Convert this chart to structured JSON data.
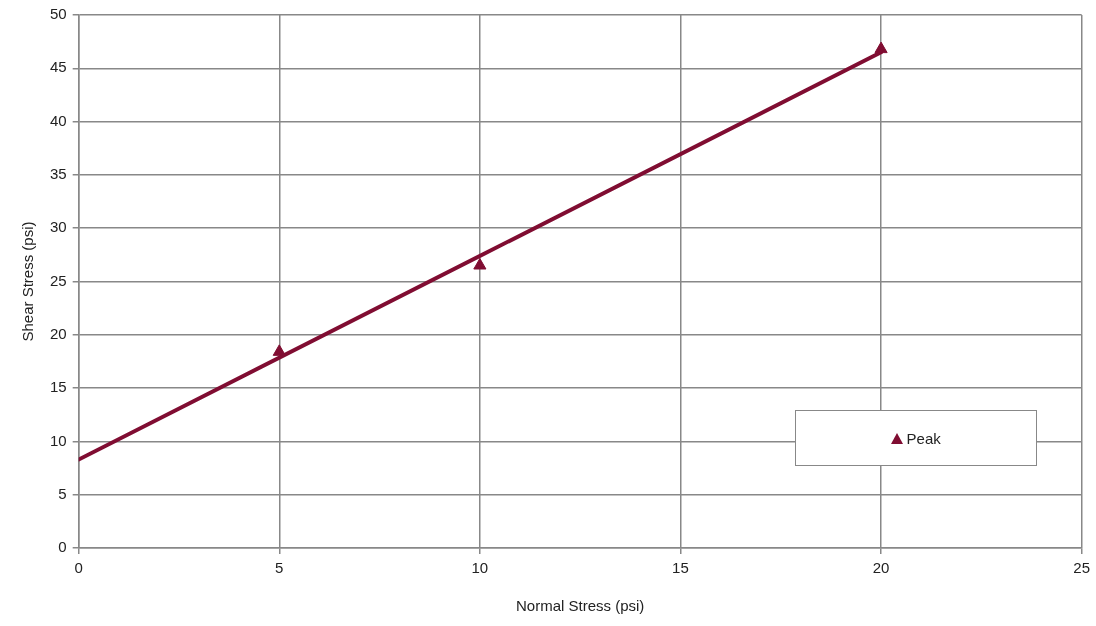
{
  "chart_data": {
    "type": "scatter",
    "xlabel": "Normal Stress (psi)",
    "ylabel": "Shear Stress (psi)",
    "xlim": [
      0,
      25
    ],
    "xticks": [
      0,
      5,
      10,
      15,
      20,
      25
    ],
    "ylim": [
      0,
      50
    ],
    "yticks": [
      0,
      5,
      10,
      15,
      20,
      25,
      30,
      35,
      40,
      45,
      50
    ],
    "grid": true,
    "legend": "bottom right",
    "series": [
      {
        "name": "Peak",
        "color": "#800d32",
        "marker": "triangle",
        "x": [
          5,
          10,
          20
        ],
        "values": [
          18.4,
          26.5,
          46.8
        ]
      },
      {
        "type": "line",
        "color": "#800d32",
        "marker": "none",
        "x": [
          0,
          20
        ],
        "values": [
          8.3,
          46.5
        ]
      }
    ]
  }
}
